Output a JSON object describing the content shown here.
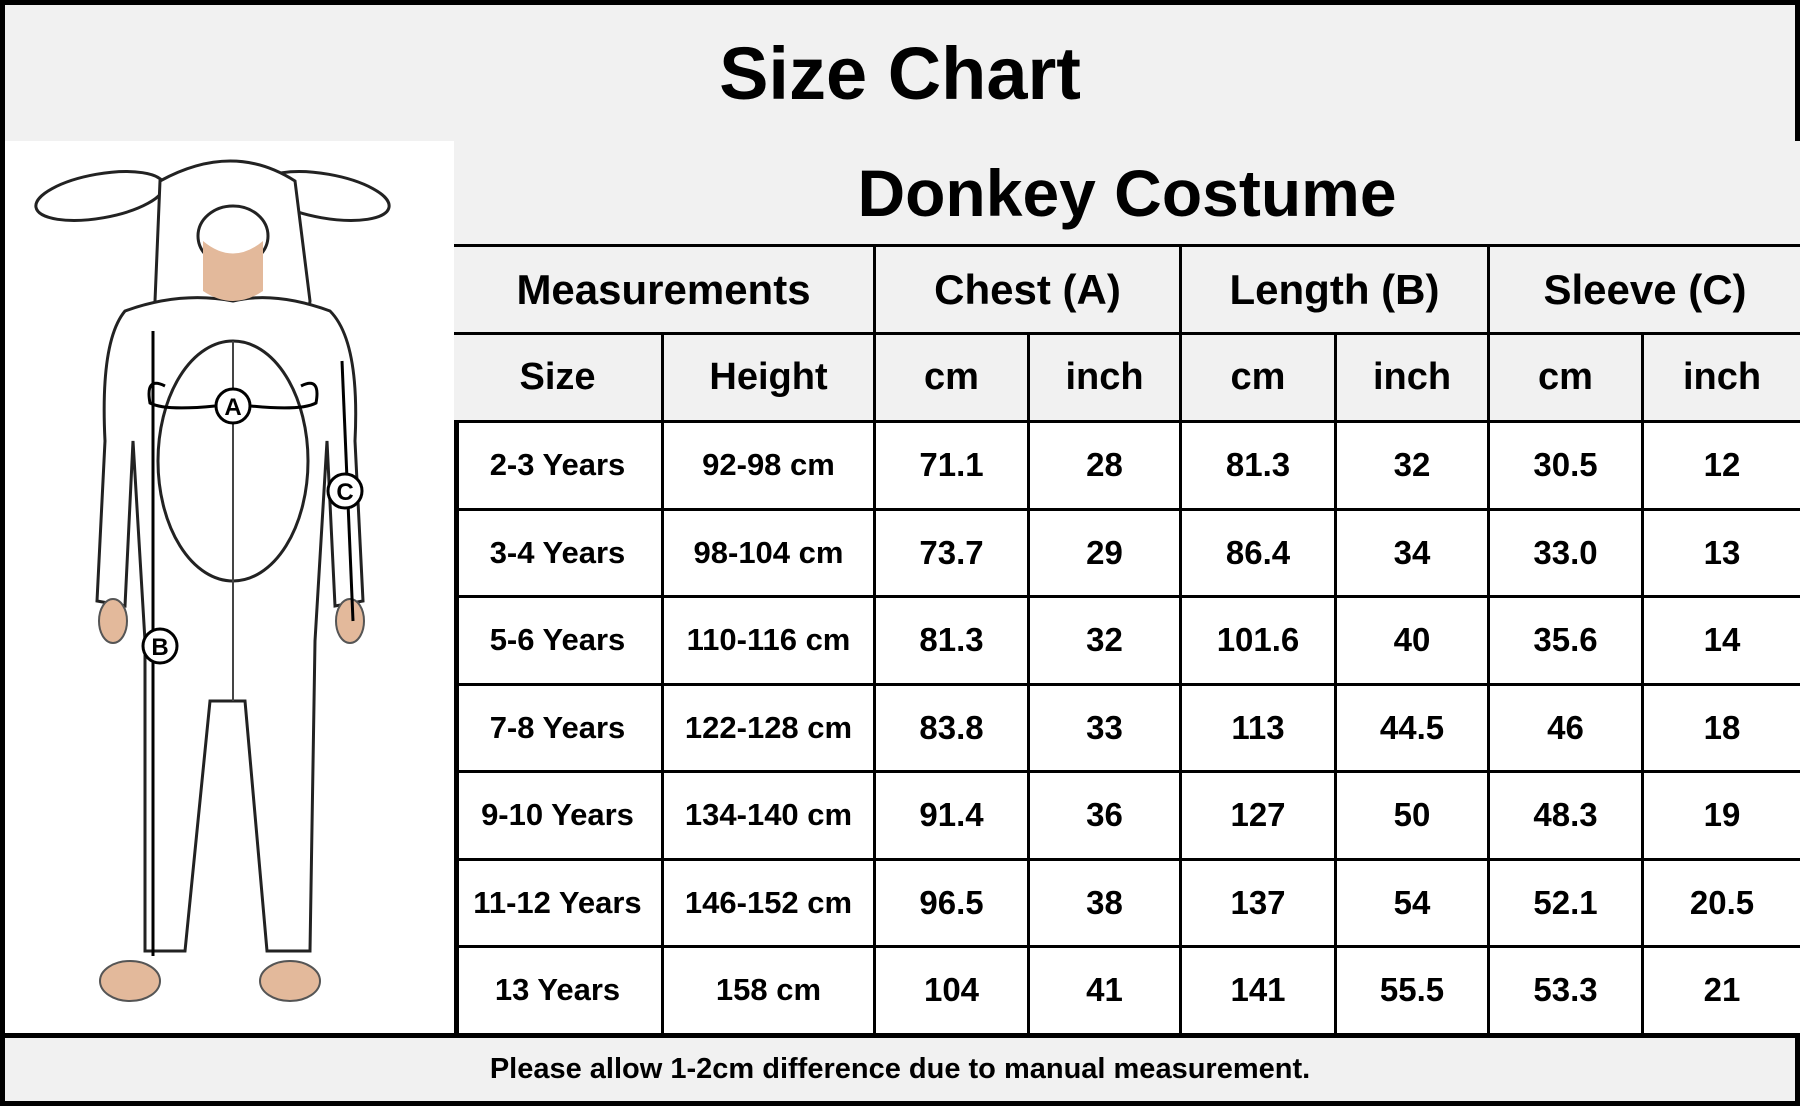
{
  "title": "Size Chart",
  "product": "Donkey Costume",
  "header": {
    "measurements": "Measurements",
    "chest": "Chest (A)",
    "length": "Length (B)",
    "sleeve": "Sleeve (C)"
  },
  "subheader": [
    "Size",
    "Height",
    "cm",
    "inch",
    "cm",
    "inch",
    "cm",
    "inch"
  ],
  "rows": [
    [
      "2-3 Years",
      "92-98 cm",
      "71.1",
      "28",
      "81.3",
      "32",
      "30.5",
      "12"
    ],
    [
      "3-4 Years",
      "98-104 cm",
      "73.7",
      "29",
      "86.4",
      "34",
      "33.0",
      "13"
    ],
    [
      "5-6 Years",
      "110-116 cm",
      "81.3",
      "32",
      "101.6",
      "40",
      "35.6",
      "14"
    ],
    [
      "7-8 Years",
      "122-128 cm",
      "83.8",
      "33",
      "113",
      "44.5",
      "46",
      "18"
    ],
    [
      "9-10 Years",
      "134-140 cm",
      "91.4",
      "36",
      "127",
      "50",
      "48.3",
      "19"
    ],
    [
      "11-12 Years",
      "146-152 cm",
      "96.5",
      "38",
      "137",
      "54",
      "52.1",
      "20.5"
    ],
    [
      "13 Years",
      "158 cm",
      "104",
      "41",
      "141",
      "55.5",
      "53.3",
      "21"
    ]
  ],
  "diagram_labels": {
    "a": "A",
    "b": "B",
    "c": "C"
  },
  "footer": "Please allow 1-2cm difference due to manual measurement."
}
